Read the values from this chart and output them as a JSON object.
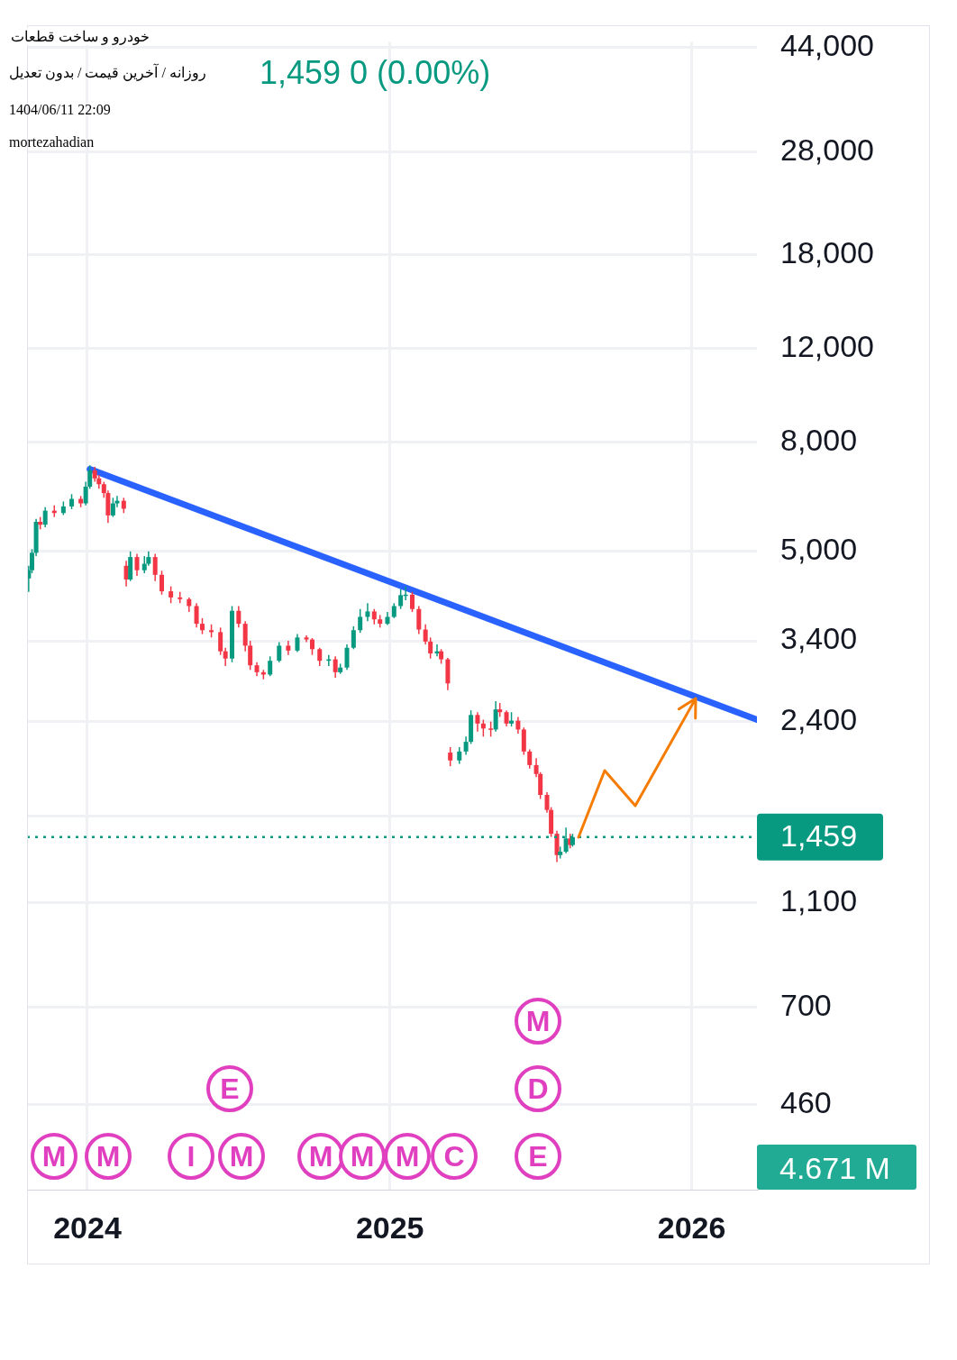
{
  "chart_data": {
    "type": "candlestick",
    "title": "خودرو و ساخت قطعات",
    "subtitle": "روزانه / آخرین قیمت / بدون تعدیل",
    "x": [
      "2023-10-22",
      "2023-10-26",
      "2023-10-31",
      "2023-11-05",
      "2023-11-11",
      "2023-11-22",
      "2023-12-03",
      "2023-12-13",
      "2023-12-24",
      "2023-12-30",
      "2024-01-04",
      "2024-01-10",
      "2024-01-15",
      "2024-01-21",
      "2024-01-26",
      "2024-02-01",
      "2024-02-06",
      "2024-02-14",
      "2024-02-17",
      "2024-02-22",
      "2024-03-01",
      "2024-03-10",
      "2024-03-15",
      "2024-03-23",
      "2024-03-31",
      "2024-04-11",
      "2024-04-22",
      "2024-05-03",
      "2024-05-12",
      "2024-05-19",
      "2024-05-30",
      "2024-06-10",
      "2024-06-16",
      "2024-06-24",
      "2024-07-02",
      "2024-07-10",
      "2024-07-16",
      "2024-07-24",
      "2024-08-01",
      "2024-08-09",
      "2024-08-20",
      "2024-08-31",
      "2024-09-11",
      "2024-09-22",
      "2024-09-29",
      "2024-10-08",
      "2024-10-19",
      "2024-10-27",
      "2024-11-02",
      "2024-11-10",
      "2024-11-18",
      "2024-11-26",
      "2024-12-05",
      "2024-12-13",
      "2024-12-20",
      "2024-12-29",
      "2025-01-06",
      "2025-01-14",
      "2025-01-20",
      "2025-01-28",
      "2025-02-05",
      "2025-02-13",
      "2025-02-19",
      "2025-02-27",
      "2025-03-04",
      "2025-03-12",
      "2025-03-15",
      "2025-03-26",
      "2025-04-03",
      "2025-04-09",
      "2025-04-17",
      "2025-04-24",
      "2025-05-03",
      "2025-05-09",
      "2025-05-14",
      "2025-05-22",
      "2025-05-28",
      "2025-06-05",
      "2025-06-12",
      "2025-06-19",
      "2025-06-27",
      "2025-07-02",
      "2025-07-10",
      "2025-07-15",
      "2025-07-22",
      "2025-07-26",
      "2025-08-02",
      "2025-08-07",
      "2025-08-10"
    ],
    "ohlc": [
      [
        4450,
        4700,
        4200,
        4610
      ],
      [
        4610,
        5050,
        4550,
        4970
      ],
      [
        4970,
        5750,
        4900,
        5680
      ],
      [
        5680,
        5800,
        5500,
        5610
      ],
      [
        5610,
        6050,
        5550,
        5960
      ],
      [
        5960,
        6100,
        5800,
        5900
      ],
      [
        5900,
        6200,
        5850,
        6070
      ],
      [
        6070,
        6400,
        6000,
        6270
      ],
      [
        6270,
        6350,
        6050,
        6150
      ],
      [
        6150,
        6750,
        6100,
        6610
      ],
      [
        6610,
        7250,
        6550,
        7090
      ],
      [
        7090,
        7200,
        6750,
        6850
      ],
      [
        6850,
        6950,
        6550,
        6680
      ],
      [
        6680,
        6750,
        6300,
        6430
      ],
      [
        6430,
        6500,
        5650,
        5840
      ],
      [
        5840,
        6300,
        5800,
        6150
      ],
      [
        6150,
        6350,
        6050,
        6220
      ],
      [
        6220,
        6300,
        5900,
        6010
      ],
      [
        4700,
        4800,
        4300,
        4430
      ],
      [
        4430,
        5000,
        4400,
        4880
      ],
      [
        4880,
        4950,
        4500,
        4610
      ],
      [
        4610,
        4900,
        4550,
        4740
      ],
      [
        4740,
        5000,
        4700,
        4880
      ],
      [
        4880,
        4950,
        4400,
        4520
      ],
      [
        4520,
        4600,
        4150,
        4210
      ],
      [
        4210,
        4300,
        4000,
        4100
      ],
      [
        4100,
        4200,
        4000,
        4070
      ],
      [
        4070,
        4100,
        3850,
        3950
      ],
      [
        3950,
        4000,
        3600,
        3660
      ],
      [
        3660,
        3750,
        3500,
        3560
      ],
      [
        3560,
        3650,
        3450,
        3530
      ],
      [
        3530,
        3600,
        3200,
        3250
      ],
      [
        3250,
        3300,
        3050,
        3150
      ],
      [
        3150,
        3950,
        3100,
        3870
      ],
      [
        3870,
        3950,
        3600,
        3660
      ],
      [
        3660,
        3700,
        3250,
        3330
      ],
      [
        3330,
        3400,
        3000,
        3060
      ],
      [
        3060,
        3100,
        2920,
        2970
      ],
      [
        2970,
        3000,
        2880,
        2940
      ],
      [
        2940,
        3180,
        2920,
        3120
      ],
      [
        3120,
        3380,
        3100,
        3330
      ],
      [
        3330,
        3400,
        3200,
        3260
      ],
      [
        3260,
        3500,
        3240,
        3450
      ],
      [
        3450,
        3480,
        3380,
        3420
      ],
      [
        3420,
        3440,
        3200,
        3280
      ],
      [
        3280,
        3300,
        3050,
        3120
      ],
      [
        3120,
        3200,
        3050,
        3140
      ],
      [
        3140,
        3180,
        2900,
        2970
      ],
      [
        2970,
        3080,
        2950,
        3030
      ],
      [
        3030,
        3350,
        3000,
        3300
      ],
      [
        3300,
        3620,
        3280,
        3560
      ],
      [
        3560,
        3900,
        3520,
        3770
      ],
      [
        3770,
        4000,
        3700,
        3860
      ],
      [
        3860,
        3900,
        3650,
        3730
      ],
      [
        3730,
        3800,
        3600,
        3660
      ],
      [
        3660,
        3850,
        3640,
        3770
      ],
      [
        3770,
        4000,
        3750,
        3950
      ],
      [
        3950,
        4250,
        3900,
        4140
      ],
      [
        4140,
        4300,
        4050,
        4150
      ],
      [
        4150,
        4200,
        3850,
        3900
      ],
      [
        3900,
        3950,
        3500,
        3570
      ],
      [
        3570,
        3650,
        3350,
        3390
      ],
      [
        3390,
        3450,
        3150,
        3220
      ],
      [
        3220,
        3350,
        3180,
        3250
      ],
      [
        3250,
        3280,
        3080,
        3140
      ],
      [
        3140,
        3160,
        2750,
        2830
      ],
      [
        2100,
        2150,
        1980,
        2030
      ],
      [
        2030,
        2150,
        2000,
        2110
      ],
      [
        2110,
        2250,
        2080,
        2200
      ],
      [
        2200,
        2520,
        2180,
        2470
      ],
      [
        2470,
        2500,
        2300,
        2380
      ],
      [
        2380,
        2420,
        2250,
        2330
      ],
      [
        2330,
        2400,
        2250,
        2320
      ],
      [
        2320,
        2620,
        2300,
        2530
      ],
      [
        2530,
        2600,
        2450,
        2500
      ],
      [
        2500,
        2520,
        2350,
        2380
      ],
      [
        2380,
        2500,
        2350,
        2410
      ],
      [
        2410,
        2450,
        2280,
        2320
      ],
      [
        2320,
        2340,
        2080,
        2110
      ],
      [
        2110,
        2130,
        1960,
        1990
      ],
      [
        1990,
        2050,
        1890,
        1915
      ],
      [
        1915,
        1930,
        1720,
        1750
      ],
      [
        1750,
        1770,
        1620,
        1640
      ],
      [
        1640,
        1660,
        1460,
        1480
      ],
      [
        1480,
        1500,
        1310,
        1350
      ],
      [
        1350,
        1400,
        1330,
        1370
      ],
      [
        1370,
        1520,
        1360,
        1450
      ],
      [
        1450,
        1480,
        1390,
        1410
      ],
      [
        1410,
        1480,
        1400,
        1459
      ]
    ],
    "colors": [
      "#089981",
      "#089981",
      "#089981",
      "#f23645",
      "#089981",
      "#f23645",
      "#089981",
      "#089981",
      "#f23645",
      "#089981",
      "#089981",
      "#f23645",
      "#f23645",
      "#f23645",
      "#f23645",
      "#089981",
      "#089981",
      "#f23645",
      "#f23645",
      "#089981",
      "#f23645",
      "#089981",
      "#089981",
      "#f23645",
      "#f23645",
      "#f23645",
      "#f23645",
      "#f23645",
      "#f23645",
      "#f23645",
      "#f23645",
      "#f23645",
      "#f23645",
      "#089981",
      "#f23645",
      "#f23645",
      "#f23645",
      "#f23645",
      "#f23645",
      "#089981",
      "#089981",
      "#f23645",
      "#089981",
      "#f23645",
      "#f23645",
      "#f23645",
      "#089981",
      "#f23645",
      "#089981",
      "#089981",
      "#089981",
      "#089981",
      "#089981",
      "#f23645",
      "#f23645",
      "#089981",
      "#089981",
      "#089981",
      "#089981",
      "#f23645",
      "#f23645",
      "#f23645",
      "#f23645",
      "#089981",
      "#f23645",
      "#f23645",
      "#f23645",
      "#089981",
      "#089981",
      "#089981",
      "#f23645",
      "#f23645",
      "#f23645",
      "#089981",
      "#f23645",
      "#f23645",
      "#089981",
      "#f23645",
      "#f23645",
      "#f23645",
      "#f23645",
      "#f23645",
      "#f23645",
      "#f23645",
      "#f23645",
      "#089981",
      "#089981",
      "#f23645",
      "#089981"
    ],
    "series": [
      {
        "type": "line",
        "color": "#2962ff",
        "x": [
          "2024-01-04",
          "2026-03-21"
        ],
        "values": [
          7130,
          2420
        ]
      }
    ],
    "xlim": [
      "2023-10-20",
      "2026-03-21"
    ],
    "xticks": [
      "2024",
      "2025",
      "2026"
    ],
    "ylim": [
      319,
      45000
    ],
    "yticks": [
      460,
      700,
      {
        "value": 1100,
        "label": "1,100"
      },
      {
        "value": 1600,
        "label": null
      },
      {
        "value": 2400,
        "label": "2,400"
      },
      {
        "value": 3400,
        "label": "3,400"
      },
      {
        "value": 5000,
        "label": "5,000"
      },
      {
        "value": 8000,
        "label": "8,000"
      },
      {
        "value": 12000,
        "label": "12,000"
      },
      {
        "value": 18000,
        "label": "18,000"
      },
      {
        "value": 28000,
        "label": "28,000"
      },
      {
        "value": 44000,
        "label": "44,000"
      }
    ],
    "log": "y",
    "grid": true,
    "ref_lines": [
      {
        "axis": "y",
        "value": 1459,
        "label": "1,459",
        "color": "#089981",
        "line_style": "dotted"
      }
    ],
    "annotations": [
      "1,459  0 (0.00%)",
      "1404/06/11 22:09",
      "mortezahadian",
      "4.671 M",
      "M",
      "M",
      "I",
      "M",
      "E",
      "M",
      "M",
      "M",
      "C",
      "E",
      "D",
      "M"
    ]
  }
}
